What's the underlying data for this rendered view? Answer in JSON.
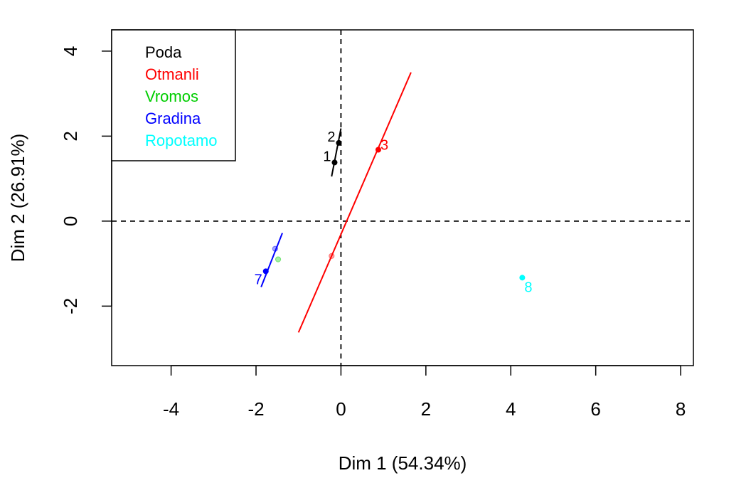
{
  "chart_data": {
    "type": "scatter",
    "xlabel": "Dim 1 (54.34%)",
    "ylabel": "Dim 2 (26.91%)",
    "xlim": [
      -5.4,
      8.3
    ],
    "ylim": [
      -3.4,
      4.5
    ],
    "x_ticks": [
      -4,
      -2,
      0,
      2,
      4,
      6,
      8
    ],
    "y_ticks": [
      -2,
      0,
      2,
      4
    ],
    "x_tick_labels": [
      "-4",
      "-2",
      "0",
      "2",
      "4",
      "6",
      "8"
    ],
    "y_tick_labels": [
      "-2",
      "0",
      "2",
      "4"
    ],
    "grid": false,
    "reference_lines": [
      {
        "axis": "x",
        "value": 0
      },
      {
        "axis": "y",
        "value": 0
      }
    ],
    "legend": {
      "position": "top-left",
      "entries": [
        {
          "label": "Poda",
          "color": "#000000"
        },
        {
          "label": "Otmanli",
          "color": "#ff0000"
        },
        {
          "label": "Vromos",
          "color": "#00cd00"
        },
        {
          "label": "Gradina",
          "color": "#0000ff"
        },
        {
          "label": "Ropotamo",
          "color": "#00ffff"
        }
      ]
    },
    "series": [
      {
        "name": "Poda",
        "color": "#000000",
        "points": [
          {
            "x": -0.15,
            "y": 1.38,
            "label": "1"
          },
          {
            "x": -0.05,
            "y": 1.84,
            "label": "2"
          }
        ],
        "line": [
          [
            -0.22,
            1.05
          ],
          [
            0.0,
            2.18
          ]
        ]
      },
      {
        "name": "Otmanli",
        "color": "#ff0000",
        "points": [
          {
            "x": 0.88,
            "y": 1.68,
            "label": "3"
          }
        ],
        "line": [
          [
            -1.0,
            -2.62
          ],
          [
            1.65,
            3.5
          ]
        ],
        "supplementary": [
          {
            "x": -0.22,
            "y": -0.82
          }
        ]
      },
      {
        "name": "Vromos",
        "color": "#00cd00",
        "points": [],
        "supplementary": [
          {
            "x": -1.48,
            "y": -0.9
          }
        ]
      },
      {
        "name": "Gradina",
        "color": "#0000ff",
        "points": [
          {
            "x": -1.77,
            "y": -1.18,
            "label": "7"
          }
        ],
        "line": [
          [
            -1.88,
            -1.55
          ],
          [
            -1.38,
            -0.28
          ]
        ],
        "supplementary": [
          {
            "x": -1.55,
            "y": -0.65
          }
        ]
      },
      {
        "name": "Ropotamo",
        "color": "#00ffff",
        "points": [
          {
            "x": 4.27,
            "y": -1.33,
            "label": "8"
          }
        ],
        "line": [
          [
            4.25,
            -1.35
          ],
          [
            4.29,
            -1.31
          ]
        ]
      }
    ]
  }
}
